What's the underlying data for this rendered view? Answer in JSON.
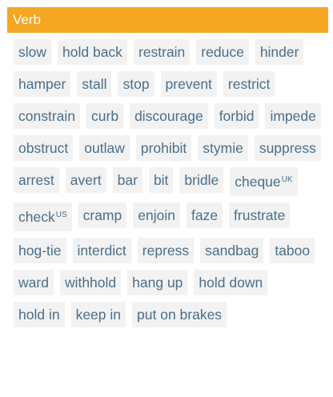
{
  "section": {
    "title": "Verb"
  },
  "rows": [
    [
      {
        "label": "slow"
      },
      {
        "label": "hold back"
      },
      {
        "label": "restrain"
      },
      {
        "label": "reduce"
      }
    ],
    [
      {
        "label": "hinder"
      },
      {
        "label": "hamper"
      },
      {
        "label": "stall"
      },
      {
        "label": "stop"
      },
      {
        "label": "prevent"
      }
    ],
    [
      {
        "label": "restrict"
      },
      {
        "label": "constrain"
      },
      {
        "label": "curb"
      },
      {
        "label": "discourage"
      }
    ],
    [
      {
        "label": "forbid"
      },
      {
        "label": "impede"
      },
      {
        "label": "obstruct"
      },
      {
        "label": "outlaw"
      }
    ],
    [
      {
        "label": "prohibit"
      },
      {
        "label": "stymie"
      },
      {
        "label": "suppress"
      },
      {
        "label": "arrest"
      }
    ],
    [
      {
        "label": "avert"
      },
      {
        "label": "bar"
      },
      {
        "label": "bit"
      },
      {
        "label": "bridle"
      },
      {
        "label": "cheque",
        "region": "UK"
      }
    ],
    [
      {
        "label": "check",
        "region": "US"
      },
      {
        "label": "cramp"
      },
      {
        "label": "enjoin"
      },
      {
        "label": "faze"
      },
      {
        "label": "frustrate"
      }
    ],
    [
      {
        "label": "hog-tie"
      },
      {
        "label": "interdict"
      },
      {
        "label": "repress"
      },
      {
        "label": "sandbag"
      }
    ],
    [
      {
        "label": "taboo"
      },
      {
        "label": "ward"
      },
      {
        "label": "withhold"
      },
      {
        "label": "hang up"
      }
    ],
    [
      {
        "label": "hold down"
      },
      {
        "label": "hold in"
      },
      {
        "label": "keep in"
      }
    ],
    [
      {
        "label": "put on brakes"
      }
    ]
  ],
  "colors": {
    "header_bg": "#f5a623",
    "header_text": "#ffffff",
    "chip_bg": "#f2f2f2",
    "chip_text": "#4a6f8a"
  }
}
